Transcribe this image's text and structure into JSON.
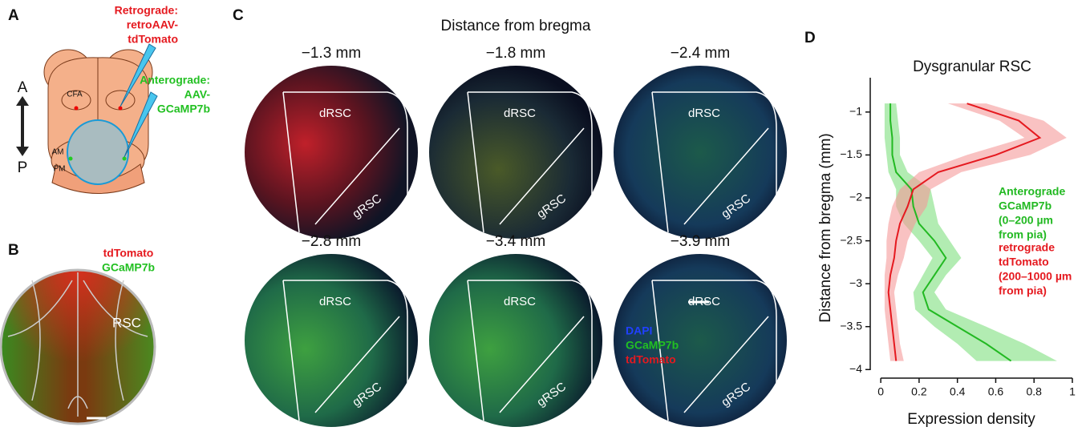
{
  "panels": {
    "a": {
      "letter": "A",
      "retrograde": [
        "Retrograde:",
        "retroAAV-",
        "tdTomato"
      ],
      "anterograde": [
        "Anterograde:",
        "AAV-",
        "GCaMP7b"
      ],
      "axis": [
        "A",
        "P"
      ],
      "areas": [
        "CFA",
        "AM",
        "PM"
      ]
    },
    "b": {
      "letter": "B",
      "labels": [
        "tdTomato",
        "GCaMP7b"
      ],
      "region": "RSC"
    },
    "c": {
      "letter": "C",
      "title": "Distance from bregma",
      "sections": [
        {
          "label": "−1.3 mm",
          "regions": [
            "dRSC",
            "gRSC"
          ]
        },
        {
          "label": "−1.8 mm",
          "regions": [
            "dRSC",
            "gRSC"
          ]
        },
        {
          "label": "−2.4 mm",
          "regions": [
            "dRSC",
            "gRSC"
          ]
        },
        {
          "label": "−2.8 mm",
          "regions": [
            "dRSC",
            "gRSC"
          ]
        },
        {
          "label": "−3.4 mm",
          "regions": [
            "dRSC",
            "gRSC"
          ]
        },
        {
          "label": "−3.9 mm",
          "regions": [
            "dRSC",
            "gRSC"
          ]
        }
      ],
      "stain_legend": [
        "DAPI",
        "GCaMP7b",
        "tdTomato"
      ]
    },
    "d": {
      "letter": "D"
    }
  },
  "chart_data": {
    "type": "line",
    "title": "Dysgranular RSC",
    "xlabel": "Expression density",
    "ylabel": "Distance from bregma (mm)",
    "xlim": [
      -0.055,
      1
    ],
    "ylim": [
      -4.1,
      -0.6
    ],
    "xticks": [
      0,
      0.2,
      0.4,
      0.6,
      0.8,
      1
    ],
    "yticks": [
      {
        "value": -1,
        "label": "−1"
      },
      {
        "value": -1.5,
        "label": "−1.5"
      },
      {
        "value": -2,
        "label": "−2"
      },
      {
        "value": -2.5,
        "label": "−2.5"
      },
      {
        "value": -3,
        "label": "−3"
      },
      {
        "value": -3.5,
        "label": "−3.5"
      },
      {
        "value": -4,
        "label": "−4"
      }
    ],
    "y": [
      -0.9,
      -1.1,
      -1.3,
      -1.5,
      -1.7,
      -1.9,
      -2.1,
      -2.3,
      -2.5,
      -2.7,
      -2.9,
      -3.1,
      -3.3,
      -3.5,
      -3.7,
      -3.9
    ],
    "series": [
      {
        "name": [
          "Anterograde",
          "GCaMP7b",
          "(0–200 µm",
          "from pia)"
        ],
        "color": "#22b922",
        "band_color": "#7ee07e",
        "values": [
          0.05,
          0.05,
          0.06,
          0.06,
          0.08,
          0.16,
          0.17,
          0.2,
          0.28,
          0.34,
          0.28,
          0.22,
          0.25,
          0.4,
          0.55,
          0.68
        ],
        "lower": [
          0.02,
          0.02,
          0.02,
          0.03,
          0.04,
          0.08,
          0.08,
          0.12,
          0.2,
          0.27,
          0.22,
          0.17,
          0.18,
          0.28,
          0.4,
          0.5
        ],
        "upper": [
          0.08,
          0.09,
          0.1,
          0.1,
          0.14,
          0.26,
          0.28,
          0.3,
          0.36,
          0.42,
          0.34,
          0.28,
          0.34,
          0.55,
          0.75,
          0.92
        ]
      },
      {
        "name": [
          "retrograde",
          "tdTomato",
          "(200–1000 µm",
          "from pia)"
        ],
        "color": "#e5191f",
        "band_color": "#f59a9a",
        "values": [
          0.45,
          0.72,
          0.83,
          0.6,
          0.3,
          0.17,
          0.14,
          0.1,
          0.08,
          0.07,
          0.05,
          0.04,
          0.05,
          0.06,
          0.07,
          0.08
        ],
        "lower": [
          0.35,
          0.62,
          0.75,
          0.45,
          0.2,
          0.1,
          0.06,
          0.04,
          0.03,
          0.03,
          0.02,
          0.02,
          0.02,
          0.03,
          0.04,
          0.05
        ],
        "upper": [
          0.55,
          0.85,
          0.97,
          0.78,
          0.42,
          0.26,
          0.24,
          0.18,
          0.14,
          0.12,
          0.09,
          0.07,
          0.08,
          0.09,
          0.1,
          0.12
        ]
      }
    ]
  }
}
